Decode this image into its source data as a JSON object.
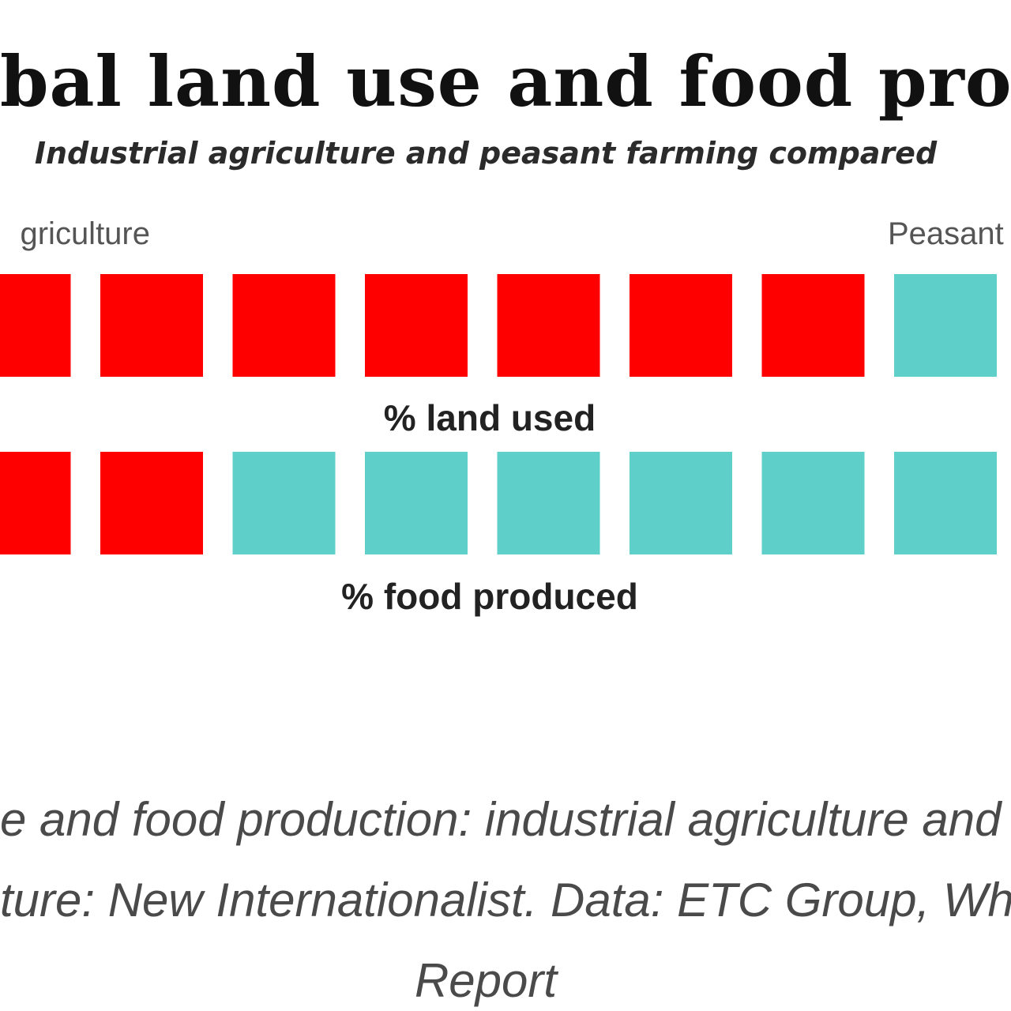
{
  "header": {
    "title": "bal land use and food product",
    "subtitle": "Industrial agriculture and peasant farming compared"
  },
  "legend": {
    "left_label": "griculture",
    "right_label": "Peasant"
  },
  "caption": {
    "line1": "e and food production: industrial agriculture and pea",
    "line2": "ture: New Internationalist. Data: ETC Group, Who W",
    "line3": "Report"
  },
  "colors": {
    "industrial": "#ff0000",
    "peasant": "#5ecfc9",
    "icon": "#111111"
  },
  "icons": {
    "industrial": "tractor-icon",
    "peasant": "shovel-icon"
  },
  "chart_data": {
    "type": "pictogram",
    "series": [
      {
        "label": "% land used",
        "visible_units": 7.4,
        "visible_industrial_units": 6.4
      },
      {
        "label": "% food produced",
        "visible_units": 7.4,
        "visible_industrial_units": 1.4
      }
    ]
  }
}
